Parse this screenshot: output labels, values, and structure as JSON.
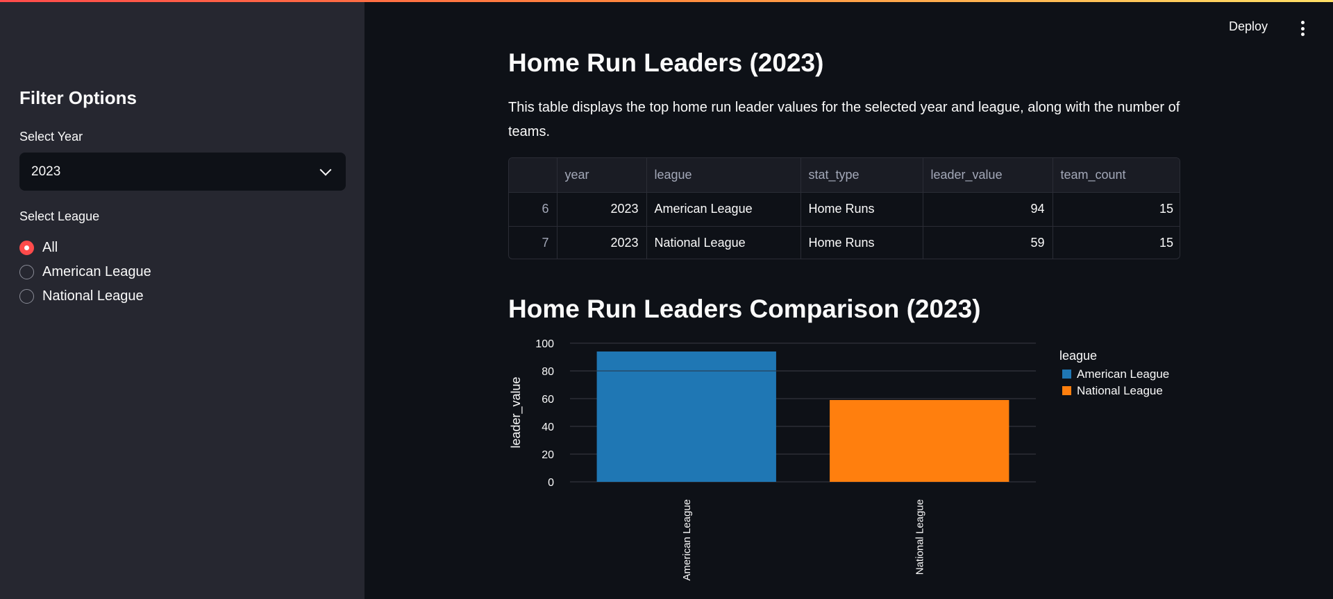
{
  "sidebar": {
    "title": "Filter Options",
    "year_label": "Select Year",
    "year_value": "2023",
    "league_label": "Select League",
    "league_options": [
      "All",
      "American League",
      "National League"
    ],
    "league_selected": "All"
  },
  "header": {
    "deploy_label": "Deploy"
  },
  "main": {
    "title": "Home Run Leaders (2023)",
    "description": "This table displays the top home run leader values for the selected year and league, along with the number of teams.",
    "table": {
      "columns": [
        "",
        "year",
        "league",
        "stat_type",
        "leader_value",
        "team_count"
      ],
      "rows": [
        [
          "6",
          "2023",
          "American League",
          "Home Runs",
          "94",
          "15"
        ],
        [
          "7",
          "2023",
          "National League",
          "Home Runs",
          "59",
          "15"
        ]
      ]
    },
    "chart_title": "Home Run Leaders Comparison (2023)"
  },
  "chart_data": {
    "type": "bar",
    "categories": [
      "American League",
      "National League"
    ],
    "values": [
      94,
      59
    ],
    "colors": [
      "#1f77b4",
      "#ff7f0e"
    ],
    "title": "",
    "xlabel": "",
    "ylabel": "leader_value",
    "ylim": [
      0,
      100
    ],
    "yticks": [
      0,
      20,
      40,
      60,
      80,
      100
    ],
    "legend_title": "league",
    "legend": [
      "American League",
      "National League"
    ],
    "legend_position": "right",
    "grid": true
  }
}
